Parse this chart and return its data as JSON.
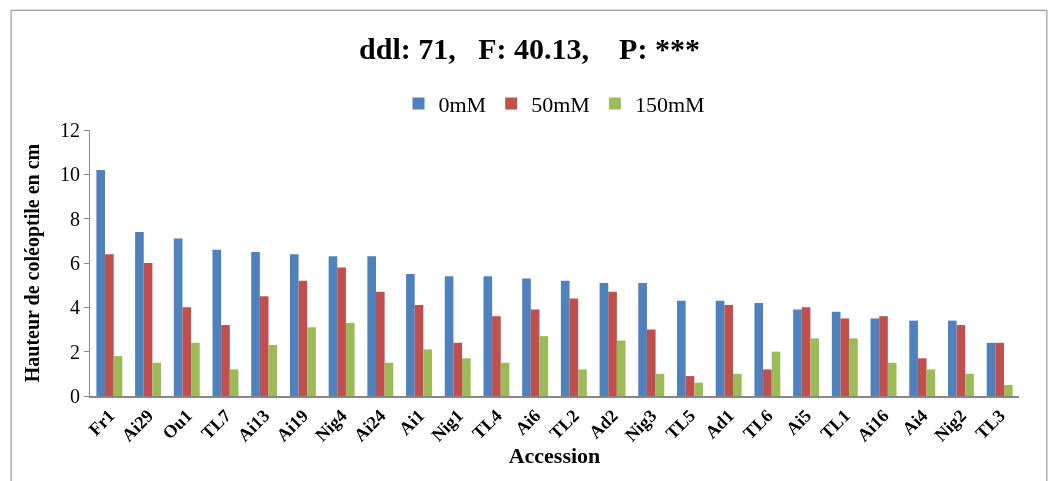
{
  "chart_data": {
    "type": "bar",
    "title": "ddl: 71,   F: 40.13,    P: ***",
    "xlabel": "Accession",
    "ylabel": "Hauteur de coléoptile en cm",
    "categories": [
      "Fr1",
      "Ai29",
      "Ou1",
      "TL7",
      "Ai13",
      "Ai19",
      "Nig4",
      "Ai24",
      "Ai1",
      "Nig1",
      "TL4",
      "Ai6",
      "TL2",
      "Ad2",
      "Nig3",
      "TL5",
      "Ad1",
      "TL6",
      "Ai5",
      "TL1",
      "Ai16",
      "Ai4",
      "Nig2",
      "TL3"
    ],
    "series": [
      {
        "name": "0mM",
        "color": "#4f81bd",
        "values": [
          10.2,
          7.4,
          7.1,
          6.6,
          6.5,
          6.4,
          6.3,
          6.3,
          5.5,
          5.4,
          5.4,
          5.3,
          5.2,
          5.1,
          5.1,
          4.3,
          4.3,
          4.2,
          3.9,
          3.8,
          3.5,
          3.4,
          3.4,
          2.4
        ]
      },
      {
        "name": "50mM",
        "color": "#c0504d",
        "values": [
          6.4,
          6.0,
          4.0,
          3.2,
          4.5,
          5.2,
          5.8,
          4.7,
          4.1,
          2.4,
          3.6,
          3.9,
          4.4,
          4.7,
          3.0,
          0.9,
          4.1,
          1.2,
          4.0,
          3.5,
          3.6,
          1.7,
          3.2,
          2.4
        ]
      },
      {
        "name": "150mM",
        "color": "#9bbb59",
        "values": [
          1.8,
          1.5,
          2.4,
          1.2,
          2.3,
          3.1,
          3.3,
          1.5,
          2.1,
          1.7,
          1.5,
          2.7,
          1.2,
          2.5,
          1.0,
          0.6,
          1.0,
          2.0,
          2.6,
          2.6,
          1.5,
          1.2,
          1.0,
          0.5
        ]
      }
    ],
    "ylim": [
      0,
      12
    ],
    "yticks": [
      0,
      2,
      4,
      6,
      8,
      10,
      12
    ],
    "legend": "top"
  }
}
